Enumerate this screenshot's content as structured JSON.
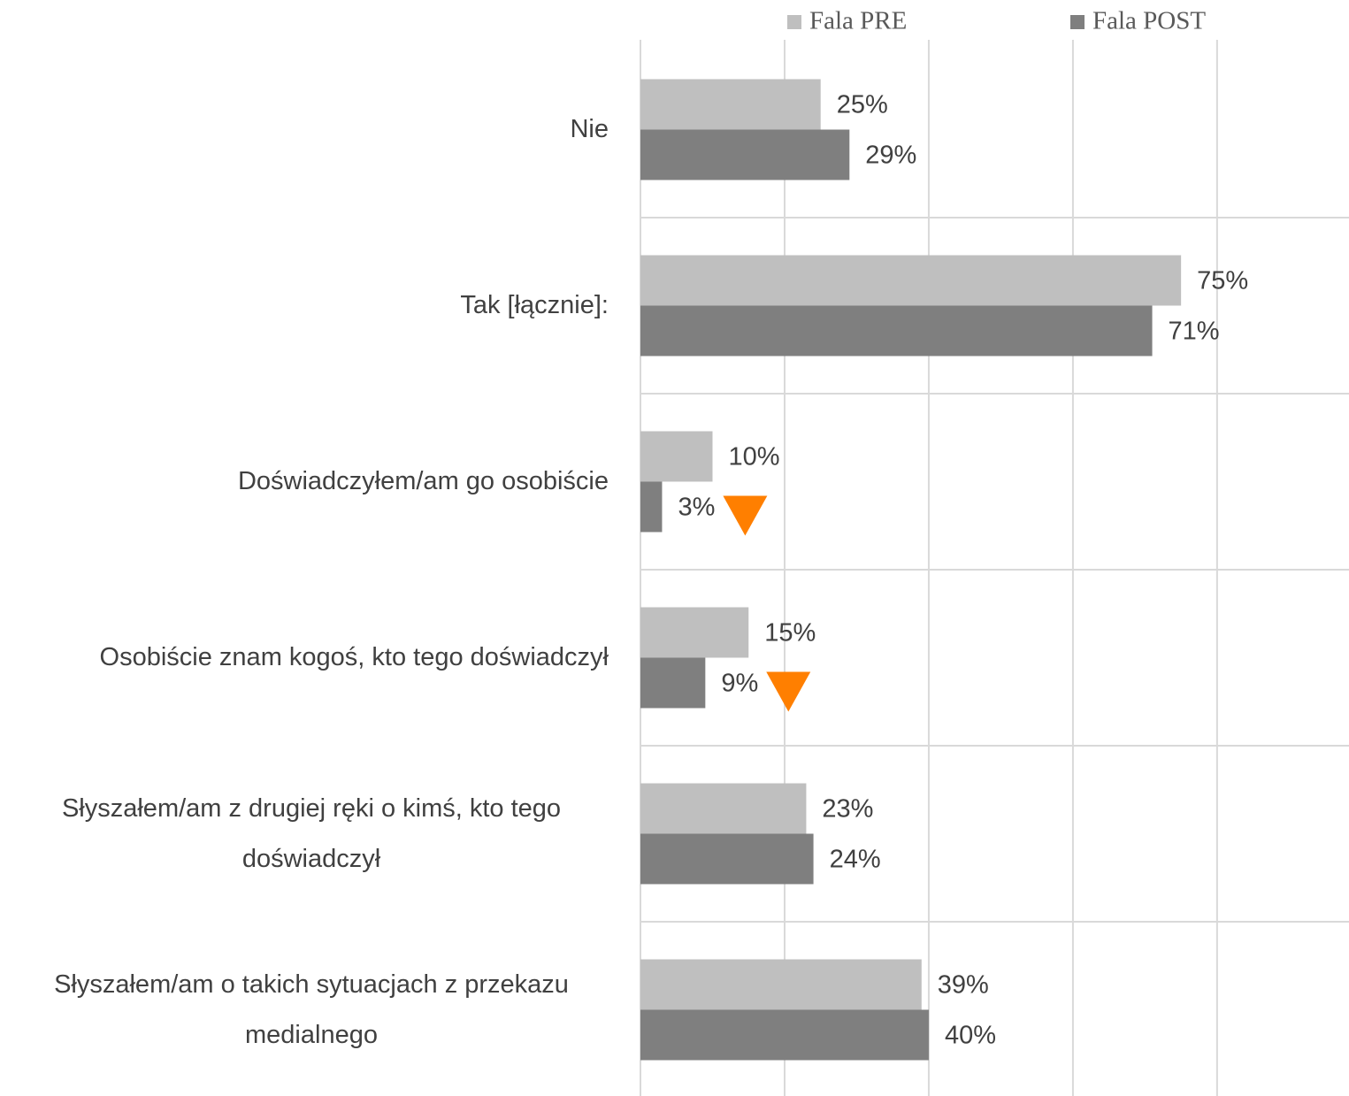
{
  "chart_data": {
    "type": "bar",
    "orientation": "horizontal",
    "categories": [
      "Nie",
      "Tak [łącznie]:",
      "Doświadczyłem/am go osobiście",
      "Osobiście znam kogoś, kto tego doświadczył",
      "Słyszałem/am z drugiej ręki o kimś, kto tego doświadczył",
      "Słyszałem/am o takich sytuacjach z przekazu medialnego"
    ],
    "series": [
      {
        "name": "Fala PRE",
        "color": "#bfbfbf",
        "values": [
          25,
          75,
          10,
          15,
          23,
          39
        ],
        "value_labels": [
          "25%",
          "75%",
          "10%",
          "15%",
          "23%",
          "39%"
        ]
      },
      {
        "name": "Fala POST",
        "color": "#7f7f7f",
        "values": [
          29,
          71,
          3,
          9,
          24,
          40
        ],
        "value_labels": [
          "29%",
          "71%",
          "3%",
          "9%",
          "24%",
          "40%"
        ],
        "significant_decrease": [
          false,
          false,
          true,
          true,
          false,
          false
        ],
        "marker_color": "#ff7f00"
      }
    ],
    "xlim": [
      0,
      98.3
    ],
    "xticks": [
      0,
      20,
      40,
      60,
      80
    ],
    "grid": true,
    "legend": "top"
  }
}
